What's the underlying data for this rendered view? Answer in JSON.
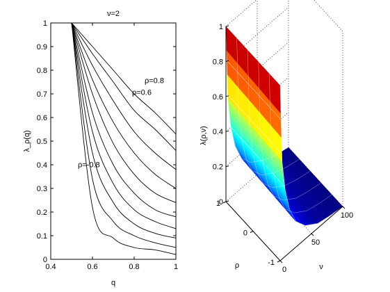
{
  "chart_data": [
    {
      "type": "line",
      "title": "ν=2",
      "xlabel": "q",
      "ylabel": "λ_ρ(q)",
      "xlim": [
        0.4,
        1.0
      ],
      "ylim": [
        0,
        1
      ],
      "xticks": [
        0.4,
        0.6,
        0.8,
        1.0
      ],
      "xtick_labels": [
        "0.4",
        "0.6",
        "0.8",
        "1"
      ],
      "yticks": [
        0,
        0.1,
        0.2,
        0.3,
        0.4,
        0.5,
        0.6,
        0.7,
        0.8,
        0.9,
        1.0
      ],
      "ytick_labels": [
        "0",
        "0.1",
        "0.2",
        "0.3",
        "0.4",
        "0.5",
        "0.6",
        "0.7",
        "0.8",
        "0.9",
        "1"
      ],
      "grid": false,
      "legend": "none",
      "curve_start": [
        0.5,
        1.0
      ],
      "series": [
        {
          "x": [
            0.5,
            0.6,
            0.7,
            0.8,
            0.9,
            1.0
          ],
          "y": [
            1.0,
            0.9,
            0.8,
            0.7,
            0.62,
            0.53
          ]
        },
        {
          "x": [
            0.5,
            0.6,
            0.7,
            0.8,
            0.9,
            1.0
          ],
          "y": [
            1.0,
            0.87,
            0.75,
            0.63,
            0.55,
            0.46
          ]
        },
        {
          "x": [
            0.5,
            0.6,
            0.7,
            0.8,
            0.9,
            1.0
          ],
          "y": [
            1.0,
            0.82,
            0.67,
            0.54,
            0.45,
            0.38
          ]
        },
        {
          "x": [
            0.5,
            0.6,
            0.7,
            0.8,
            0.9,
            1.0
          ],
          "y": [
            1.0,
            0.76,
            0.58,
            0.45,
            0.36,
            0.3
          ]
        },
        {
          "x": [
            0.5,
            0.6,
            0.7,
            0.8,
            0.9,
            1.0
          ],
          "y": [
            1.0,
            0.7,
            0.49,
            0.36,
            0.28,
            0.24
          ]
        },
        {
          "x": [
            0.5,
            0.6,
            0.7,
            0.8,
            0.9,
            1.0
          ],
          "y": [
            1.0,
            0.62,
            0.4,
            0.28,
            0.21,
            0.18
          ]
        },
        {
          "x": [
            0.5,
            0.6,
            0.7,
            0.8,
            0.9,
            1.0
          ],
          "y": [
            1.0,
            0.54,
            0.32,
            0.21,
            0.16,
            0.13
          ]
        },
        {
          "x": [
            0.5,
            0.6,
            0.7,
            0.8,
            0.9,
            1.0
          ],
          "y": [
            1.0,
            0.45,
            0.24,
            0.15,
            0.11,
            0.09
          ]
        },
        {
          "x": [
            0.5,
            0.6,
            0.7,
            0.8,
            0.9,
            1.0
          ],
          "y": [
            1.0,
            0.34,
            0.16,
            0.1,
            0.07,
            0.05
          ]
        },
        {
          "x": [
            0.5,
            0.6,
            0.7,
            0.8,
            0.9,
            1.0
          ],
          "y": [
            1.0,
            0.22,
            0.09,
            0.05,
            0.04,
            0.02
          ]
        }
      ],
      "annotations": [
        {
          "text": "ρ=0.8",
          "x": 0.85,
          "y": 0.745
        },
        {
          "text": "ρ=0.6",
          "x": 0.79,
          "y": 0.695
        },
        {
          "text": "ρ=-0.8",
          "x": 0.53,
          "y": 0.39
        }
      ]
    },
    {
      "type": "surface",
      "title": "",
      "xlabel": "ν",
      "ylabel": "ρ",
      "zlabel": "λ(ρ,ν)",
      "xlim": [
        0,
        100
      ],
      "ylim": [
        -1,
        1
      ],
      "zlim": [
        0,
        1
      ],
      "xticks": [
        0,
        50,
        100
      ],
      "xtick_labels": [
        "0",
        "50",
        "100"
      ],
      "yticks": [
        -1,
        0,
        1
      ],
      "ytick_labels": [
        "-1",
        "0",
        "1"
      ],
      "zticks": [
        0,
        0.2,
        0.4,
        0.6,
        0.8,
        1.0
      ],
      "ztick_labels": [
        "0",
        "0.2",
        "0.4",
        "0.6",
        "0.8",
        "1"
      ],
      "colormap": "jet",
      "box_grid": "dotted",
      "rho_samples": [
        -1,
        -0.6,
        -0.2,
        0.2,
        0.6,
        1
      ],
      "nu_front_profile": {
        "nu": [
          0,
          3,
          8,
          15,
          25,
          40,
          60,
          80,
          100
        ],
        "lambda": [
          1.0,
          0.58,
          0.4,
          0.27,
          0.17,
          0.1,
          0.05,
          0.02,
          0.0
        ]
      }
    }
  ]
}
